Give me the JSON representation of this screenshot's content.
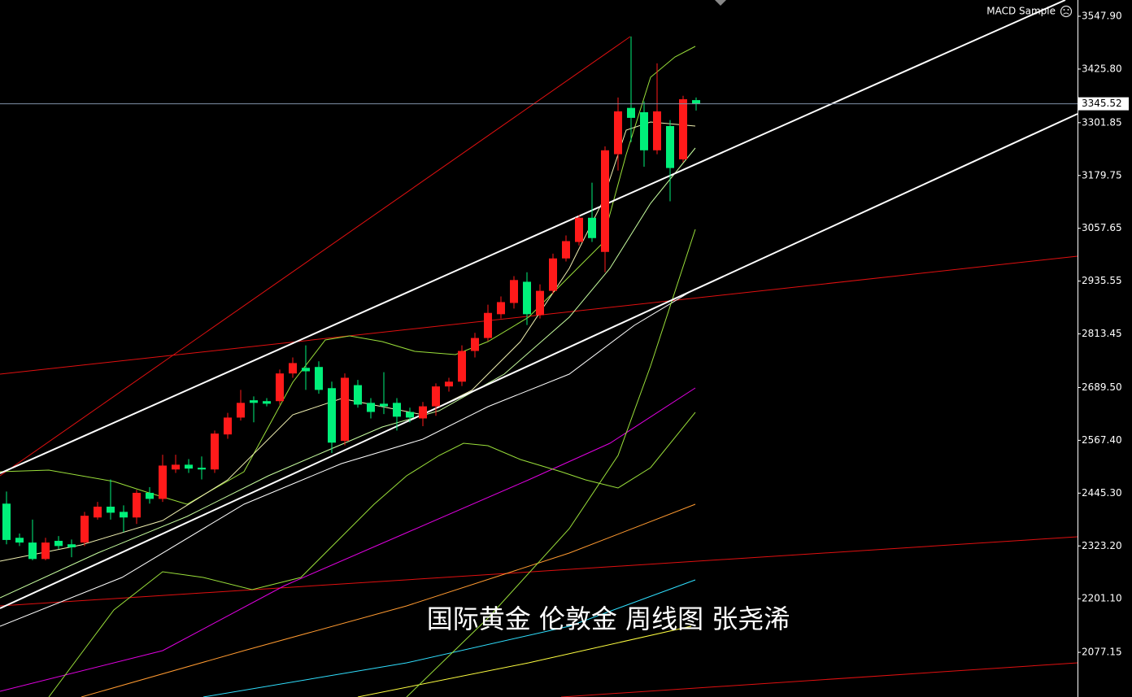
{
  "chart_data": {
    "type": "candlestick",
    "indicator": "MACD Sample",
    "annotation": "国际黄金 伦敦金  周线图 张尧浠",
    "up_color": "#ff1a1a",
    "down_color": "#00f07a",
    "open": [
      2421,
      2342,
      2331,
      2293,
      2335,
      2327,
      2331,
      2389,
      2414,
      2402,
      2389,
      2446,
      2432,
      2500,
      2511,
      2504,
      2500,
      2581,
      2620,
      2660,
      2658,
      2658,
      2722,
      2735,
      2737,
      2688,
      2566,
      2695,
      2654,
      2652,
      2654,
      2633,
      2618,
      2646,
      2692,
      2703,
      2774,
      2804,
      2859,
      2885,
      2934,
      2857,
      2913,
      2988,
      3026,
      3082,
      3003,
      3229,
      3336,
      3326,
      3238,
      3294,
      3217,
      3354
    ],
    "high": [
      2449,
      2352,
      2384,
      2342,
      2346,
      2338,
      2402,
      2425,
      2477,
      2417,
      2453,
      2459,
      2534,
      2534,
      2524,
      2530,
      2590,
      2631,
      2684,
      2669,
      2665,
      2731,
      2759,
      2787,
      2750,
      2703,
      2722,
      2707,
      2665,
      2725,
      2665,
      2643,
      2656,
      2699,
      2712,
      2787,
      2816,
      2881,
      2900,
      2947,
      2956,
      2928,
      2999,
      3041,
      3088,
      3163,
      3247,
      3360,
      3501,
      3351,
      3439,
      3308,
      3364,
      3360
    ],
    "low": [
      2327,
      2323,
      2290,
      2290,
      2316,
      2297,
      2323,
      2384,
      2384,
      2355,
      2374,
      2421,
      2425,
      2492,
      2492,
      2477,
      2492,
      2571,
      2613,
      2609,
      2646,
      2650,
      2712,
      2684,
      2675,
      2538,
      2556,
      2643,
      2618,
      2628,
      2590,
      2609,
      2600,
      2624,
      2680,
      2693,
      2759,
      2797,
      2849,
      2872,
      2834,
      2849,
      2906,
      2981,
      3018,
      3026,
      2956,
      3191,
      3257,
      3200,
      3229,
      3120,
      3210,
      3330
    ],
    "close": [
      2337,
      2331,
      2293,
      2331,
      2323,
      2320,
      2393,
      2414,
      2400,
      2389,
      2446,
      2432,
      2509,
      2511,
      2502,
      2500,
      2583,
      2620,
      2654,
      2654,
      2652,
      2722,
      2746,
      2727,
      2684,
      2562,
      2712,
      2650,
      2633,
      2646,
      2622,
      2620,
      2646,
      2692,
      2703,
      2774,
      2804,
      2862,
      2887,
      2938,
      2859,
      2913,
      2988,
      3028,
      3082,
      3035,
      3238,
      3328,
      3313,
      3238,
      3328,
      3197,
      3356,
      3345.52
    ],
    "ylim": [
      1973.9,
      3585.5
    ],
    "yticks": [
      {
        "value": 3547.9,
        "label": "3547.90"
      },
      {
        "value": 3425.8,
        "label": "3425.80"
      },
      3301.85,
      3179.75,
      3057.65,
      2935.55,
      2813.45,
      {
        "value": 2689.5,
        "label": "2689.50"
      },
      {
        "value": 2567.4,
        "label": "2567.40"
      },
      {
        "value": 2445.3,
        "label": "2445.30"
      },
      {
        "value": 2323.2,
        "label": "2323.20"
      },
      {
        "value": 2201.1,
        "label": "2201.10"
      },
      2077.15
    ]
  }
}
